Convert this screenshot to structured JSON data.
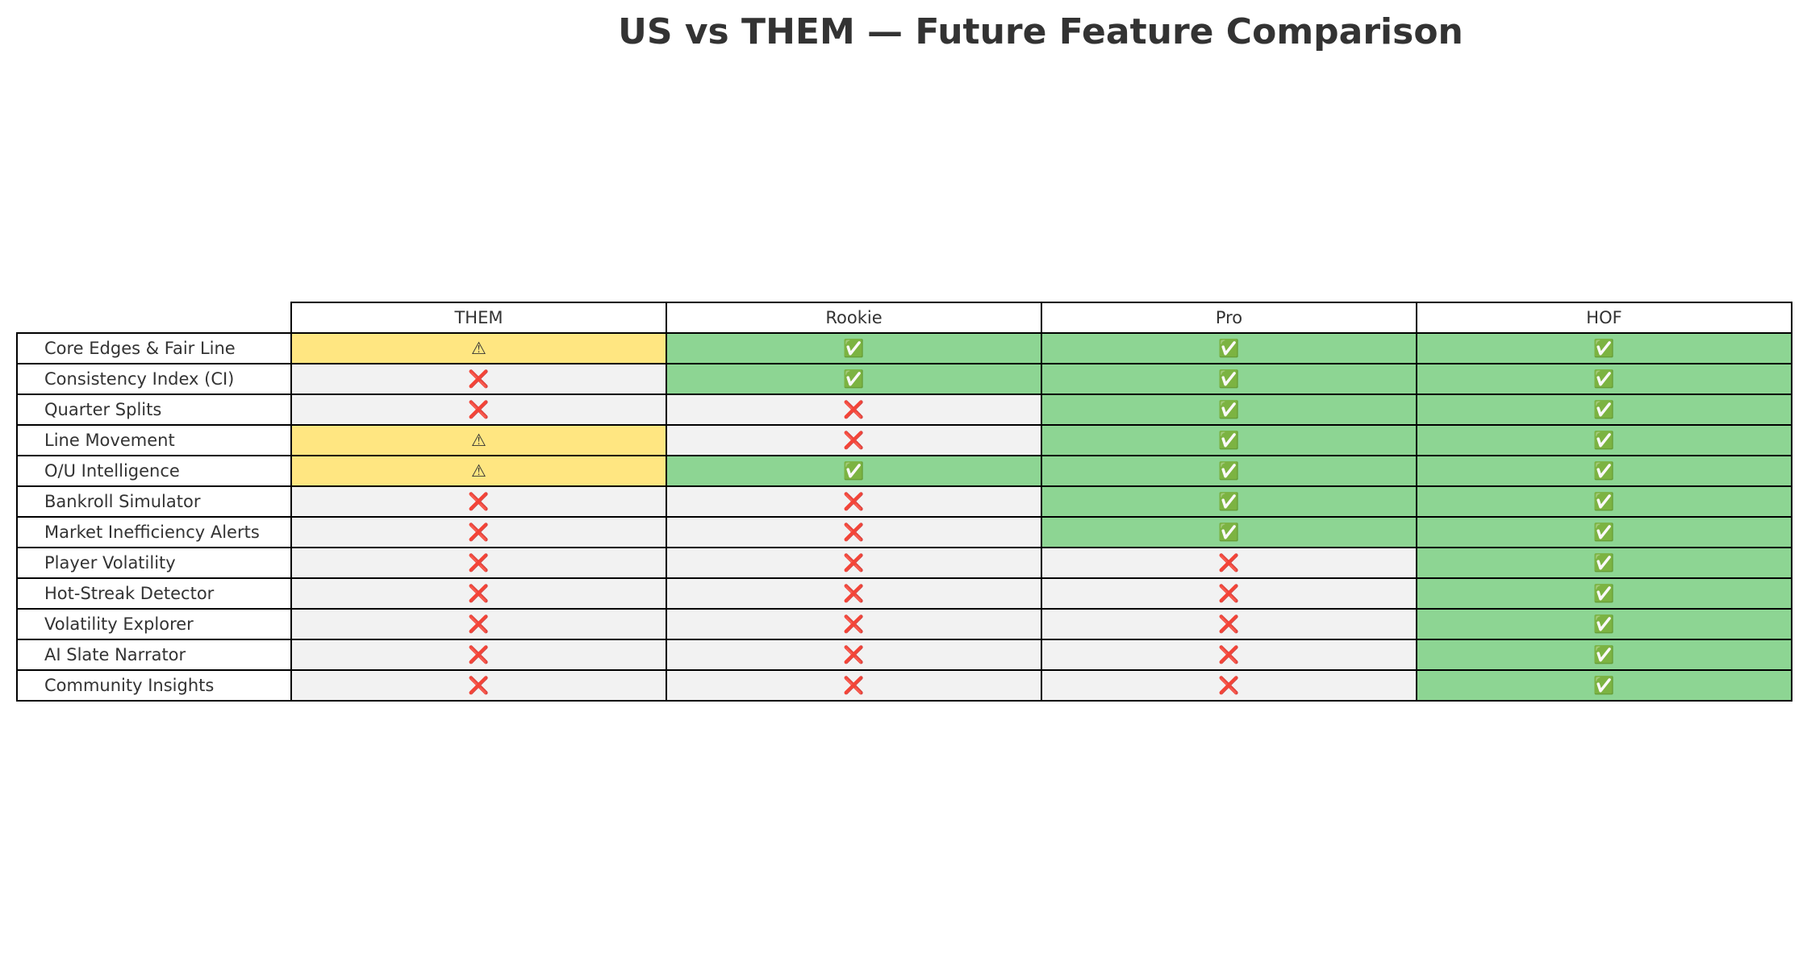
{
  "colors": {
    "full": "#8dd593",
    "partial": "#ffe681",
    "none": "#f2f2f2",
    "title_text": "#333333",
    "border": "#000000"
  },
  "chart_data": {
    "type": "table",
    "title": "US vs THEM — Future Feature Comparison",
    "columns": [
      "THEM",
      "Rookie",
      "Pro",
      "HOF"
    ],
    "rows": [
      {
        "feature": "Core Edges & Fair Line",
        "cells": [
          "⚠",
          "✅",
          "✅",
          "✅"
        ],
        "status": [
          "partial",
          "full",
          "full",
          "full"
        ]
      },
      {
        "feature": "Consistency Index (CI)",
        "cells": [
          "❌",
          "✅",
          "✅",
          "✅"
        ],
        "status": [
          "none",
          "full",
          "full",
          "full"
        ]
      },
      {
        "feature": "Quarter Splits",
        "cells": [
          "❌",
          "❌",
          "✅",
          "✅"
        ],
        "status": [
          "none",
          "none",
          "full",
          "full"
        ]
      },
      {
        "feature": "Line Movement",
        "cells": [
          "⚠",
          "❌",
          "✅",
          "✅"
        ],
        "status": [
          "partial",
          "none",
          "full",
          "full"
        ]
      },
      {
        "feature": "O/U Intelligence",
        "cells": [
          "⚠",
          "✅",
          "✅",
          "✅"
        ],
        "status": [
          "partial",
          "full",
          "full",
          "full"
        ]
      },
      {
        "feature": "Bankroll Simulator",
        "cells": [
          "❌",
          "❌",
          "✅",
          "✅"
        ],
        "status": [
          "none",
          "none",
          "full",
          "full"
        ]
      },
      {
        "feature": "Market Inefficiency Alerts",
        "cells": [
          "❌",
          "❌",
          "✅",
          "✅"
        ],
        "status": [
          "none",
          "none",
          "full",
          "full"
        ]
      },
      {
        "feature": "Player Volatility",
        "cells": [
          "❌",
          "❌",
          "❌",
          "✅"
        ],
        "status": [
          "none",
          "none",
          "none",
          "full"
        ]
      },
      {
        "feature": "Hot-Streak Detector",
        "cells": [
          "❌",
          "❌",
          "❌",
          "✅"
        ],
        "status": [
          "none",
          "none",
          "none",
          "full"
        ]
      },
      {
        "feature": "Volatility Explorer",
        "cells": [
          "❌",
          "❌",
          "❌",
          "✅"
        ],
        "status": [
          "none",
          "none",
          "none",
          "full"
        ]
      },
      {
        "feature": "AI Slate Narrator",
        "cells": [
          "❌",
          "❌",
          "❌",
          "✅"
        ],
        "status": [
          "none",
          "none",
          "none",
          "full"
        ]
      },
      {
        "feature": "Community Insights",
        "cells": [
          "❌",
          "❌",
          "❌",
          "✅"
        ],
        "status": [
          "none",
          "none",
          "none",
          "full"
        ]
      }
    ]
  }
}
